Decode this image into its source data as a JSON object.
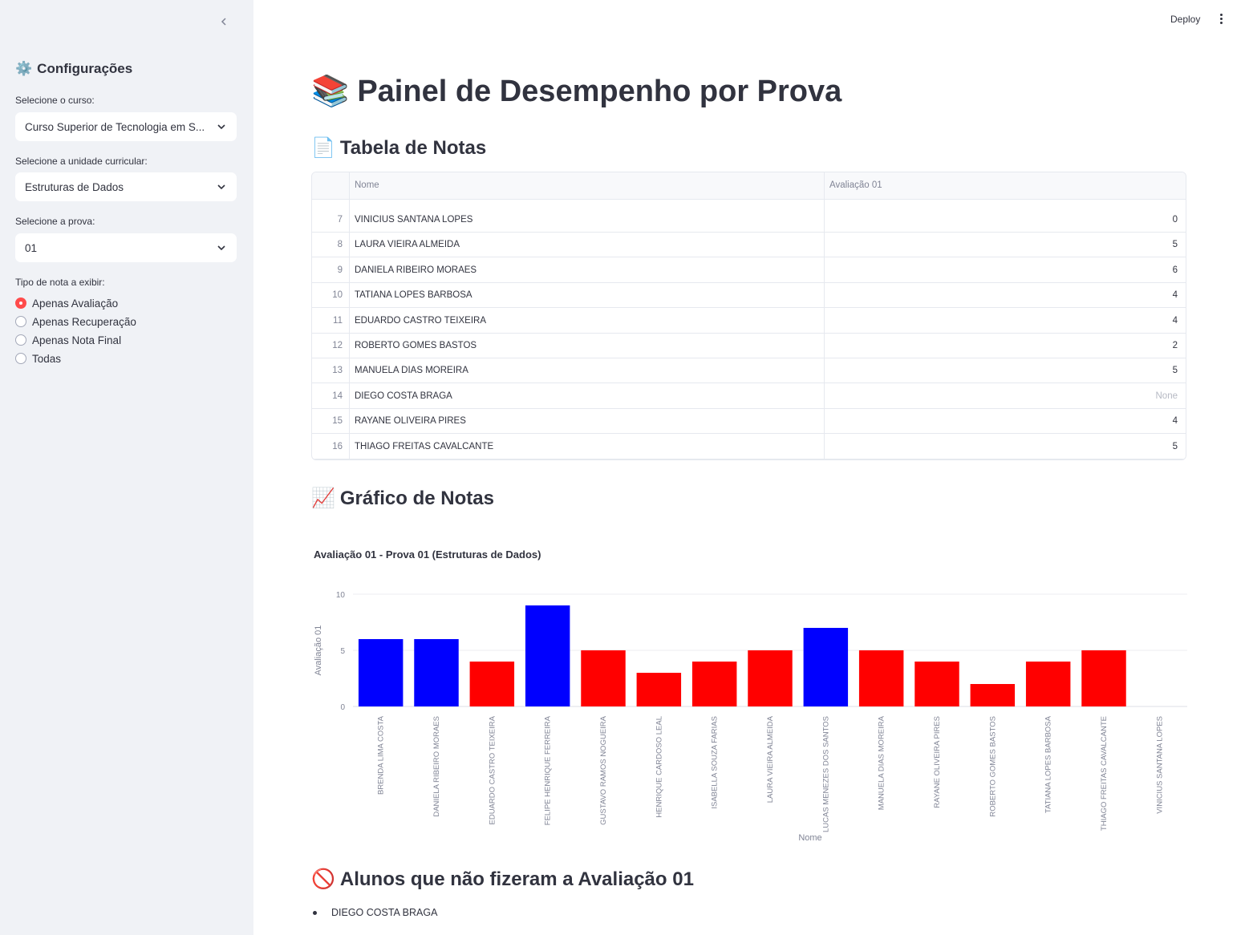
{
  "header": {
    "deploy_label": "Deploy"
  },
  "sidebar": {
    "heading_icon": "⚙️",
    "heading": "Configurações",
    "course": {
      "label": "Selecione o curso:",
      "value": "Curso Superior de Tecnologia em S..."
    },
    "unit": {
      "label": "Selecione a unidade curricular:",
      "value": "Estruturas de Dados"
    },
    "exam": {
      "label": "Selecione a prova:",
      "value": "01"
    },
    "grade_type": {
      "label": "Tipo de nota a exibir:",
      "options": [
        "Apenas Avaliação",
        "Apenas Recuperação",
        "Apenas Nota Final",
        "Todas"
      ],
      "selected_index": 0
    }
  },
  "main": {
    "title_icon": "📚",
    "title": "Painel de Desempenho por Prova",
    "table_heading_icon": "📄",
    "table_heading": "Tabela de Notas",
    "table": {
      "columns": [
        "Nome",
        "Avaliação 01"
      ],
      "rows": [
        {
          "index": "7",
          "name": "VINICIUS SANTANA LOPES",
          "grade": "0"
        },
        {
          "index": "8",
          "name": "LAURA VIEIRA ALMEIDA",
          "grade": "5"
        },
        {
          "index": "9",
          "name": "DANIELA RIBEIRO MORAES",
          "grade": "6"
        },
        {
          "index": "10",
          "name": "TATIANA LOPES BARBOSA",
          "grade": "4"
        },
        {
          "index": "11",
          "name": "EDUARDO CASTRO TEIXEIRA",
          "grade": "4"
        },
        {
          "index": "12",
          "name": "ROBERTO GOMES BASTOS",
          "grade": "2"
        },
        {
          "index": "13",
          "name": "MANUELA DIAS MOREIRA",
          "grade": "5"
        },
        {
          "index": "14",
          "name": "DIEGO COSTA BRAGA",
          "grade": "None"
        },
        {
          "index": "15",
          "name": "RAYANE OLIVEIRA PIRES",
          "grade": "4"
        },
        {
          "index": "16",
          "name": "THIAGO FREITAS CAVALCANTE",
          "grade": "5"
        }
      ]
    },
    "chart_heading_icon": "📈",
    "chart_heading": "Gráfico de Notas",
    "missing_heading_icon": "🚫",
    "missing_heading": "Alunos que não fizeram a Avaliação 01",
    "missing_students": [
      "DIEGO COSTA BRAGA"
    ]
  },
  "chart_data": {
    "type": "bar",
    "title": "Avaliação 01 - Prova 01 (Estruturas de Dados)",
    "xlabel": "Nome",
    "ylabel": "Avaliação 01",
    "ylim": [
      0,
      10
    ],
    "yticks": [
      0,
      5,
      10
    ],
    "grid": true,
    "pass_color": "#0000ff",
    "fail_color": "#ff0000",
    "categories": [
      "BRENDA LIMA COSTA",
      "DANIELA RIBEIRO MORAES",
      "EDUARDO CASTRO TEIXEIRA",
      "FELIPE HENRIQUE FERREIRA",
      "GUSTAVO RAMOS NOGUEIRA",
      "HENRIQUE CARDOSO LEAL",
      "ISABELLA SOUZA FARIAS",
      "LAURA VIEIRA ALMEIDA",
      "LUCAS MENEZES DOS SANTOS",
      "MANUELA DIAS MOREIRA",
      "RAYANE OLIVEIRA PIRES",
      "ROBERTO GOMES BASTOS",
      "TATIANA LOPES BARBOSA",
      "THIAGO FREITAS CAVALCANTE",
      "VINICIUS SANTANA LOPES"
    ],
    "values": [
      6,
      6,
      4,
      9,
      5,
      3,
      4,
      5,
      7,
      5,
      4,
      2,
      4,
      5,
      0
    ]
  }
}
